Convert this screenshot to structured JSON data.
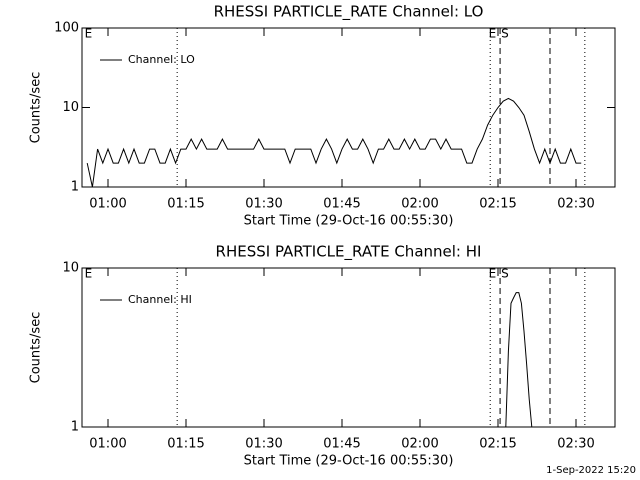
{
  "chart_data": [
    {
      "type": "line",
      "title": "RHESSI PARTICLE_RATE Channel: LO",
      "xlabel": "Start Time (29-Oct-16 00:55:30)",
      "ylabel": "Counts/sec",
      "log_y": true,
      "ylim": [
        1,
        100
      ],
      "yticks": [
        1,
        10,
        100
      ],
      "xlim": [
        55,
        157.5
      ],
      "xticks": [
        {
          "value": 60,
          "label": "01:00"
        },
        {
          "value": 75,
          "label": "01:15"
        },
        {
          "value": 90,
          "label": "01:30"
        },
        {
          "value": 105,
          "label": "01:45"
        },
        {
          "value": 120,
          "label": "02:00"
        },
        {
          "value": 135,
          "label": "02:15"
        },
        {
          "value": 150,
          "label": "02:30"
        }
      ],
      "series": [
        {
          "name": "Channel: LO",
          "color": "#000000",
          "x": [
            56,
            57,
            58,
            59,
            60,
            61,
            62,
            63,
            64,
            65,
            66,
            67,
            68,
            69,
            70,
            71,
            72,
            73,
            74,
            75,
            76,
            77,
            78,
            79,
            80,
            81,
            82,
            83,
            84,
            85,
            86,
            87,
            88,
            89,
            90,
            91,
            92,
            93,
            94,
            95,
            96,
            97,
            98,
            99,
            100,
            101,
            102,
            103,
            104,
            105,
            106,
            107,
            108,
            109,
            110,
            111,
            112,
            113,
            114,
            115,
            116,
            117,
            118,
            119,
            120,
            121,
            122,
            123,
            124,
            125,
            126,
            127,
            128,
            129,
            130,
            131,
            132,
            133,
            134,
            135,
            136,
            137,
            138,
            139,
            140,
            141,
            142,
            143,
            144,
            145,
            146,
            147,
            148,
            149,
            150,
            151
          ],
          "values": [
            2,
            1,
            3,
            2,
            3,
            2,
            2,
            3,
            2,
            3,
            2,
            2,
            3,
            3,
            2,
            2,
            3,
            2,
            3,
            3,
            4,
            3,
            4,
            3,
            3,
            3,
            4,
            3,
            3,
            3,
            3,
            3,
            3,
            4,
            3,
            3,
            3,
            3,
            3,
            2,
            3,
            3,
            3,
            3,
            2,
            3,
            4,
            3,
            2,
            3,
            4,
            3,
            3,
            4,
            3,
            2,
            3,
            3,
            4,
            3,
            3,
            4,
            3,
            4,
            3,
            3,
            4,
            4,
            3,
            4,
            3,
            3,
            3,
            2,
            2,
            3,
            4,
            6,
            8,
            10,
            12,
            13,
            12,
            10,
            8,
            5,
            3,
            2,
            3,
            2,
            3,
            2,
            2,
            3,
            2,
            2
          ]
        }
      ],
      "vlines": [
        {
          "x": 73.3,
          "style": "dotted"
        },
        {
          "x": 133.5,
          "style": "dotted"
        },
        {
          "x": 135.4,
          "style": "dashed"
        },
        {
          "x": 145,
          "style": "dashed"
        },
        {
          "x": 151.7,
          "style": "dotted"
        }
      ],
      "annotations": [
        {
          "text": "E",
          "x": 55.5
        },
        {
          "text": "E",
          "x": 133.2
        },
        {
          "text": "S",
          "x": 135.6
        }
      ]
    },
    {
      "type": "line",
      "title": "RHESSI PARTICLE_RATE Channel: HI",
      "xlabel": "Start Time (29-Oct-16 00:55:30)",
      "ylabel": "Counts/sec",
      "log_y": true,
      "ylim": [
        1,
        10
      ],
      "yticks": [
        1,
        10
      ],
      "xlim": [
        55,
        157.5
      ],
      "xticks": [
        {
          "value": 60,
          "label": "01:00"
        },
        {
          "value": 75,
          "label": "01:15"
        },
        {
          "value": 90,
          "label": "01:30"
        },
        {
          "value": 105,
          "label": "01:45"
        },
        {
          "value": 120,
          "label": "02:00"
        },
        {
          "value": 135,
          "label": "02:15"
        },
        {
          "value": 150,
          "label": "02:30"
        }
      ],
      "series": [
        {
          "name": "Channel: HI",
          "color": "#000000",
          "x": [
            136.5,
            137,
            137.5,
            138,
            138.5,
            139,
            139.5,
            140,
            140.5,
            141,
            141.5
          ],
          "values": [
            1,
            3,
            6,
            6.5,
            7,
            7,
            6,
            4,
            2.5,
            1.5,
            1
          ]
        }
      ],
      "vlines": [
        {
          "x": 73.3,
          "style": "dotted"
        },
        {
          "x": 133.5,
          "style": "dotted"
        },
        {
          "x": 135.4,
          "style": "dashed"
        },
        {
          "x": 145,
          "style": "dashed"
        },
        {
          "x": 151.7,
          "style": "dotted"
        }
      ],
      "annotations": [
        {
          "text": "E",
          "x": 55.5
        },
        {
          "text": "E",
          "x": 133.2
        },
        {
          "text": "S",
          "x": 135.6
        }
      ]
    }
  ],
  "footer": "1-Sep-2022 15:20"
}
